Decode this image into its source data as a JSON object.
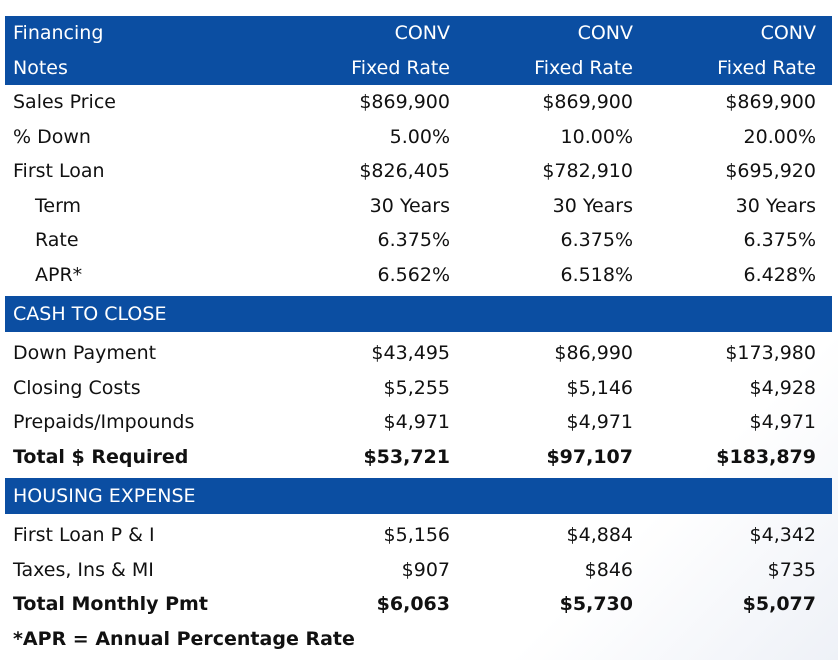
{
  "header": {
    "row1": [
      "Financing",
      "CONV",
      "CONV",
      "CONV"
    ],
    "row2": [
      "Notes",
      "Fixed Rate",
      "Fixed Rate",
      "Fixed Rate"
    ]
  },
  "loan": {
    "sales_price": {
      "label": "Sales Price",
      "values": [
        "$869,900",
        "$869,900",
        "$869,900"
      ]
    },
    "pct_down": {
      "label": "% Down",
      "values": [
        "5.00%",
        "10.00%",
        "20.00%"
      ]
    },
    "first_loan": {
      "label": "First Loan",
      "values": [
        "$826,405",
        "$782,910",
        "$695,920"
      ]
    },
    "term": {
      "label": "Term",
      "values": [
        "30 Years",
        "30 Years",
        "30 Years"
      ]
    },
    "rate": {
      "label": "Rate",
      "values": [
        "6.375%",
        "6.375%",
        "6.375%"
      ]
    },
    "apr": {
      "label": "APR*",
      "values": [
        "6.562%",
        "6.518%",
        "6.428%"
      ]
    }
  },
  "cash_to_close": {
    "title": "CASH TO CLOSE",
    "down_payment": {
      "label": "Down Payment",
      "values": [
        "$43,495",
        "$86,990",
        "$173,980"
      ]
    },
    "closing_costs": {
      "label": "Closing Costs",
      "values": [
        "$5,255",
        "$5,146",
        "$4,928"
      ]
    },
    "prepaids": {
      "label": "Prepaids/Impounds",
      "values": [
        "$4,971",
        "$4,971",
        "$4,971"
      ]
    },
    "total": {
      "label": "Total $ Required",
      "values": [
        "$53,721",
        "$97,107",
        "$183,879"
      ]
    }
  },
  "housing_expense": {
    "title": "HOUSING EXPENSE",
    "pi": {
      "label": "First Loan P & I",
      "values": [
        "$5,156",
        "$4,884",
        "$4,342"
      ]
    },
    "taxes": {
      "label": "Taxes, Ins & MI",
      "values": [
        "$907",
        "$846",
        "$735"
      ]
    },
    "total": {
      "label": "Total Monthly Pmt",
      "values": [
        "$6,063",
        "$5,730",
        "$5,077"
      ]
    }
  },
  "footnote": "*APR = Annual Percentage Rate",
  "colors": {
    "header_blue": "#0b4ea2"
  }
}
